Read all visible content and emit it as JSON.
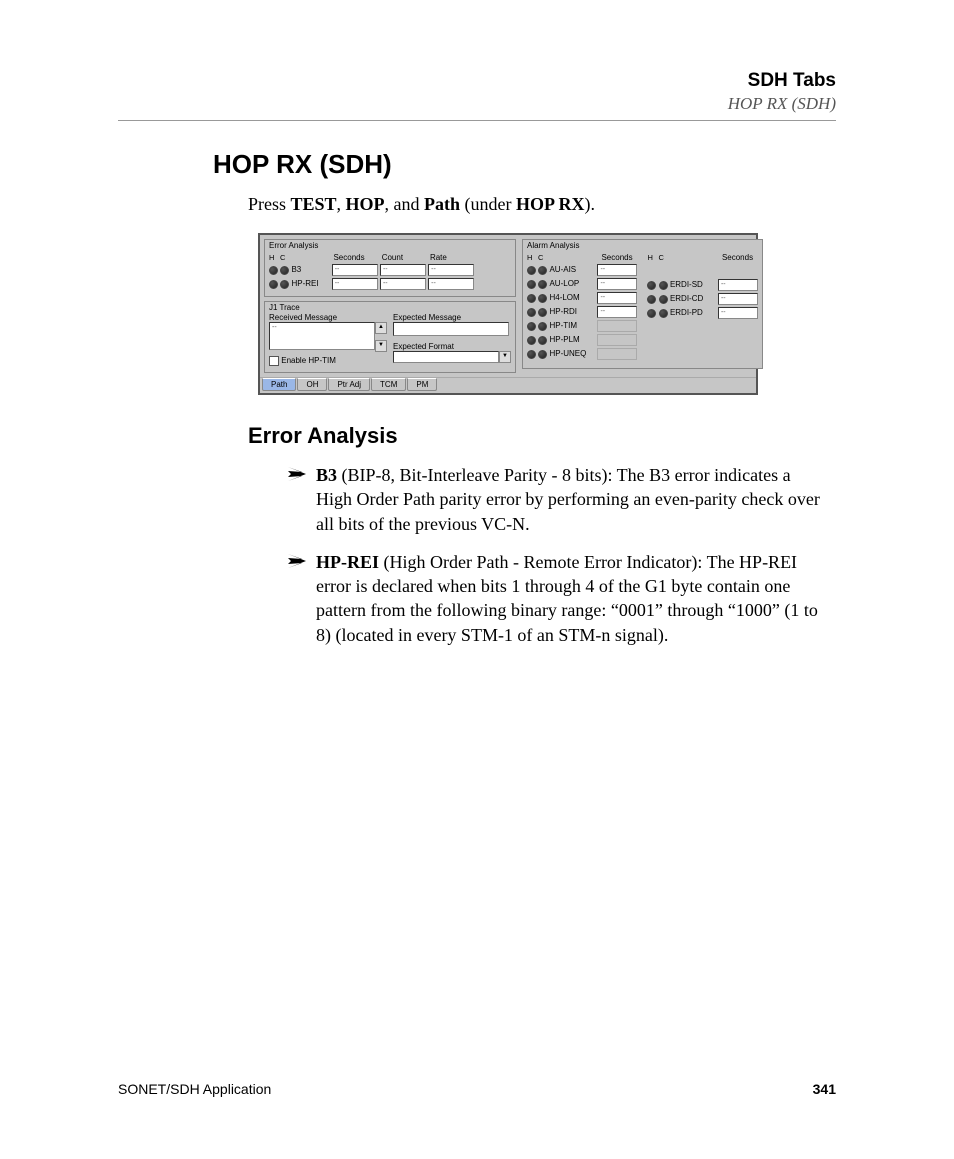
{
  "header": {
    "title": "SDH Tabs",
    "sub": "HOP RX (SDH)"
  },
  "h1": "HOP RX (SDH)",
  "intro": {
    "p1": "Press ",
    "b1": "TEST",
    "s1": ", ",
    "b2": "HOP",
    "s2": ", and ",
    "b3": "Path",
    "s3": " (under ",
    "b4": "HOP RX",
    "s4": ")."
  },
  "ui": {
    "error_title": "Error Analysis",
    "hc_h": "H",
    "hc_c": "C",
    "cols": {
      "seconds": "Seconds",
      "count": "Count",
      "rate": "Rate"
    },
    "rows": {
      "b3": "B3",
      "hprei": "HP-REI"
    },
    "dash": "--",
    "j1": {
      "title": "J1 Trace",
      "recv": "Received Message",
      "exp_msg": "Expected Message",
      "exp_fmt": "Expected Format",
      "enable": "Enable HP-TIM"
    },
    "alarm_title": "Alarm Analysis",
    "alarms1": [
      "AU-AIS",
      "AU-LOP",
      "H4-LOM",
      "HP-RDI",
      "HP-TIM",
      "HP-PLM",
      "HP-UNEQ"
    ],
    "alarms2": [
      "ERDI-SD",
      "ERDI-CD",
      "ERDI-PD"
    ],
    "tabs": [
      "Path",
      "OH",
      "Ptr Adj",
      "TCM",
      "PM"
    ]
  },
  "h2": "Error Analysis",
  "bullets": {
    "b1_term": "B3",
    "b1_text": " (BIP-8, Bit-Interleave Parity - 8 bits): The B3 error indicates a High Order Path parity error by performing an even-parity check over all bits of the previous VC-N.",
    "b2_term": "HP-REI",
    "b2_text": " (High Order Path - Remote Error Indicator): The HP-REI error is declared when bits 1 through 4 of the G1 byte contain one pattern from the following binary range: “0001” through “1000” (1 to 8) (located in every STM-1 of an STM-n signal)."
  },
  "footer": {
    "app": "SONET/SDH Application",
    "page": "341"
  },
  "style": {
    "page_bg": "#ffffff",
    "ui_bg": "#c6c6c6",
    "tab_active": "#9ab7e6",
    "border": "#888888",
    "text": "#000000",
    "header_rule": "#999999"
  }
}
